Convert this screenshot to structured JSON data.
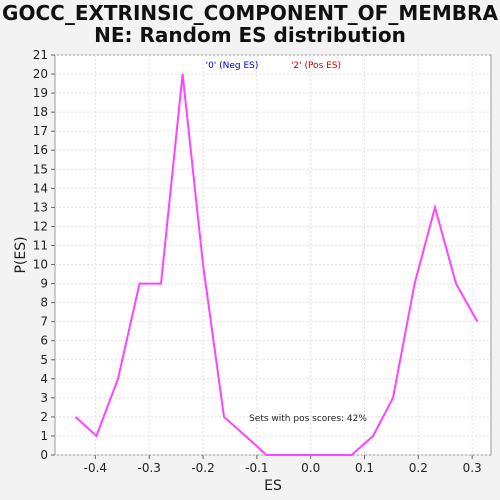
{
  "chart_data": {
    "type": "line",
    "title_line1": "GOCC_EXTRINSIC_COMPONENT_OF_MEMBRA",
    "title_line2": "NE: Random ES distribution",
    "xlabel": "ES",
    "ylabel": "P(ES)",
    "xlim": [
      -0.475,
      0.335
    ],
    "ylim": [
      0,
      21
    ],
    "x_ticks": [
      -0.4,
      -0.3,
      -0.2,
      -0.1,
      0.0,
      0.1,
      0.2,
      0.3
    ],
    "x_tick_labels": [
      "-0.4",
      "-0.3",
      "-0.2",
      "-0.1",
      "0.0",
      "0.1",
      "0.2",
      "0.3"
    ],
    "y_ticks": [
      0,
      1,
      2,
      3,
      4,
      5,
      6,
      7,
      8,
      9,
      10,
      11,
      12,
      13,
      14,
      15,
      16,
      17,
      18,
      19,
      20,
      21
    ],
    "y_tick_labels": [
      "0",
      "1",
      "2",
      "3",
      "4",
      "5",
      "6",
      "7",
      "8",
      "9",
      "10",
      "11",
      "12",
      "13",
      "14",
      "15",
      "16",
      "17",
      "18",
      "19",
      "20",
      "21"
    ],
    "grid": true,
    "legend": [
      {
        "label": "'0' (Neg ES)",
        "color": "#0000cc"
      },
      {
        "label": "'2' (Pos ES)",
        "color": "#cc0000"
      }
    ],
    "annotation": "Sets with pos scores: 42%",
    "line_color": "#ff44ff",
    "series": [
      {
        "x": [
          -0.437,
          -0.398,
          -0.358,
          -0.318,
          -0.278,
          -0.238,
          -0.2,
          -0.161,
          -0.121,
          -0.082,
          -0.042,
          -0.003,
          0.037,
          0.076,
          0.116,
          0.153,
          0.193,
          0.231,
          0.27,
          0.31
        ],
        "values": [
          2,
          1,
          4,
          9,
          9,
          20,
          10,
          2,
          1,
          0,
          0,
          0,
          0,
          0,
          1,
          3,
          9,
          13,
          9,
          7
        ]
      }
    ]
  }
}
